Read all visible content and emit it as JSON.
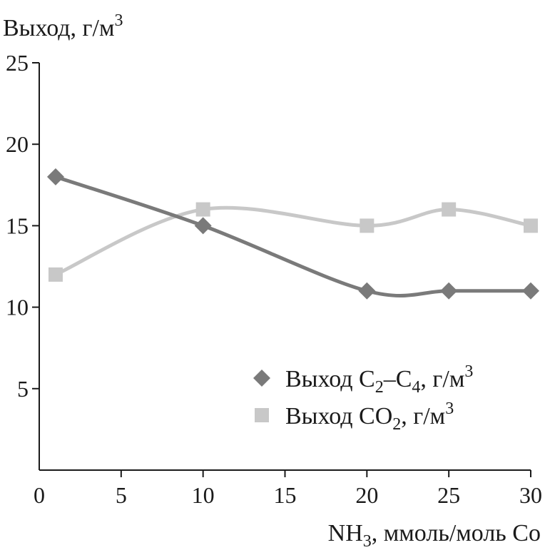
{
  "chart_data": {
    "type": "line",
    "title": "",
    "ylabel": "Выход, г/м",
    "ylabel_sup": "3",
    "xlabel": {
      "prefix": "NH",
      "sub": "3",
      "suffix": ", ммоль/моль Co"
    },
    "xlim": [
      0,
      30
    ],
    "ylim": [
      0,
      25
    ],
    "xticks": [
      "0",
      "5",
      "10",
      "15",
      "20",
      "25",
      "30"
    ],
    "yticks": [
      "5",
      "10",
      "15",
      "20",
      "25"
    ],
    "grid": false,
    "legend_position": "bottom-right",
    "x": [
      1,
      10,
      20,
      25,
      30
    ],
    "series": [
      {
        "name": "Выход C2–C4, г/м3",
        "legend": {
          "a": "Выход C",
          "sub1": "2",
          "b": "–C",
          "sub2": "4",
          "c": ", г/м",
          "sup": "3"
        },
        "marker": "diamond",
        "color": "#7a7a7a",
        "values": [
          18,
          15,
          11,
          11,
          11
        ]
      },
      {
        "name": "Выход CO2, г/м3",
        "legend": {
          "a": "Выход CO",
          "sub1": "2",
          "c": ", г/м",
          "sup": "3"
        },
        "marker": "square",
        "color": "#c8c8c8",
        "values": [
          12,
          16,
          15,
          16,
          15
        ]
      }
    ]
  }
}
